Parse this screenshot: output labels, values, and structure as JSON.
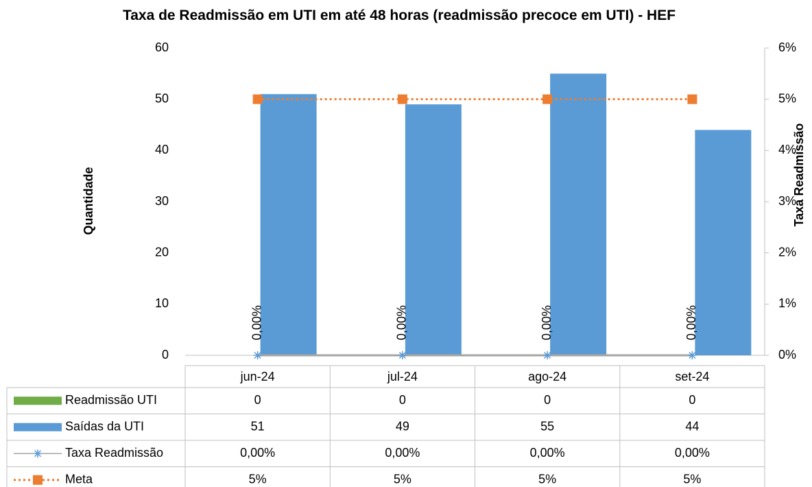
{
  "chart_data": {
    "type": "bar",
    "title": "Taxa de Readmissão em UTI em até 48 horas (readmissão precoce em UTI) - HEF",
    "ylabel": "Quantidade",
    "y2label": "Taxa Readmissão",
    "categories": [
      "jun-24",
      "jul-24",
      "ago-24",
      "set-24"
    ],
    "ylim": [
      0,
      60
    ],
    "yticks": [
      0,
      10,
      20,
      30,
      40,
      50,
      60
    ],
    "y2lim": [
      0,
      6
    ],
    "y2ticks": [
      {
        "value": 0,
        "label": "0%"
      },
      {
        "value": 1,
        "label": "1%"
      },
      {
        "value": 2,
        "label": "2%"
      },
      {
        "value": 3,
        "label": "3%"
      },
      {
        "value": 4,
        "label": "4%"
      },
      {
        "value": 5,
        "label": "5%"
      },
      {
        "value": 6,
        "label": "6%"
      }
    ],
    "series": [
      {
        "name": "Readmissão UTI",
        "type": "bar",
        "color": "#70ad47",
        "values": [
          0,
          0,
          0,
          0
        ]
      },
      {
        "name": "Saídas da UTI",
        "type": "bar",
        "color": "#5b9bd5",
        "values": [
          51,
          49,
          55,
          44
        ]
      },
      {
        "name": "Taxa Readmissão",
        "type": "line",
        "axis": "y2",
        "color": "#a5a5a5",
        "marker_color": "#5b9bd5",
        "marker": "star",
        "values": [
          0,
          0,
          0,
          0
        ],
        "value_labels": [
          "0,00%",
          "0,00%",
          "0,00%",
          "0,00%"
        ],
        "show_labels": true
      },
      {
        "name": "Meta",
        "type": "line",
        "axis": "y2",
        "color": "#ed7d31",
        "marker_color": "#ed7d31",
        "marker": "square",
        "dash": true,
        "values": [
          5,
          5,
          5,
          5
        ],
        "value_labels": [
          "5%",
          "5%",
          "5%",
          "5%"
        ]
      }
    ]
  }
}
